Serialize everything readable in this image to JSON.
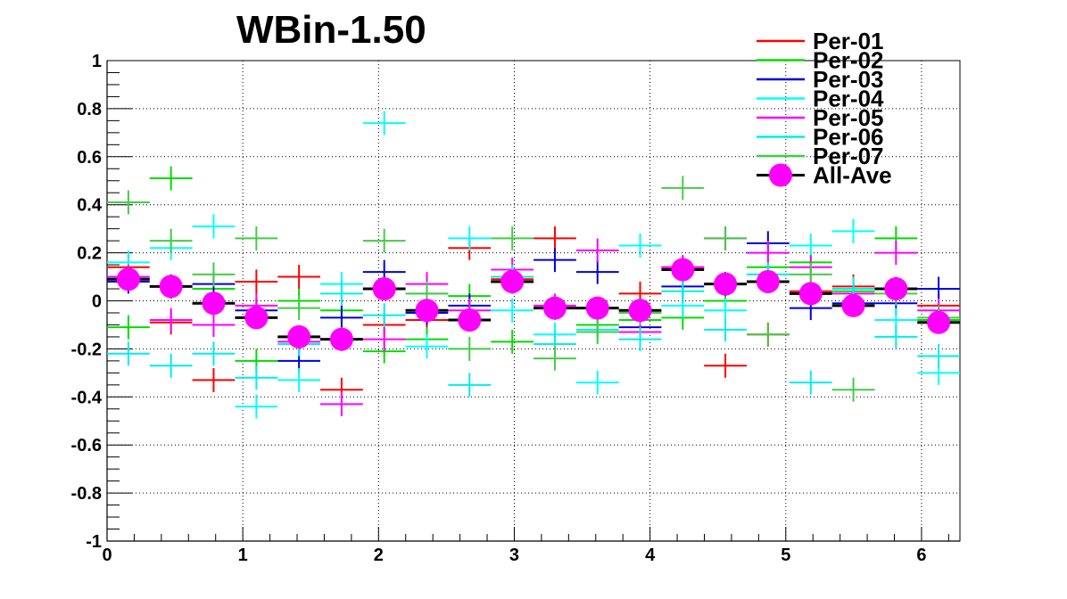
{
  "chart_data": {
    "type": "scatter",
    "title": "WBin-1.50",
    "xlabel": "",
    "ylabel": "",
    "xlim": [
      0,
      6.283
    ],
    "ylim": [
      -1,
      1
    ],
    "grid": true,
    "legend_position": "top-right",
    "x_ticks": [
      0,
      1,
      2,
      3,
      4,
      5,
      6
    ],
    "x_tick_labels": [
      "0",
      "1",
      "2",
      "3",
      "4",
      "5",
      "6"
    ],
    "y_ticks": [
      -1,
      -0.8,
      -0.6,
      -0.4,
      -0.2,
      0,
      0.2,
      0.4,
      0.6,
      0.8,
      1
    ],
    "y_tick_labels": [
      "-1",
      "-0.8",
      "-0.6",
      "-0.4",
      "-0.2",
      "0",
      "0.2",
      "0.4",
      "0.6",
      "0.8",
      "1"
    ],
    "bin_width": 0.314,
    "x": [
      0.157,
      0.471,
      0.785,
      1.1,
      1.414,
      1.728,
      2.042,
      2.356,
      2.67,
      2.985,
      3.299,
      3.613,
      3.927,
      4.241,
      4.555,
      4.869,
      5.184,
      5.498,
      5.812,
      6.126
    ],
    "series": [
      {
        "name": "Per-01",
        "color": "#ff0000",
        "y_err": 0.05,
        "values": [
          0.14,
          -0.09,
          -0.33,
          0.08,
          0.1,
          -0.37,
          -0.1,
          -0.08,
          0.22,
          0.09,
          0.26,
          -0.1,
          0.03,
          0.14,
          -0.27,
          -0.14,
          0.04,
          0.06,
          0.05,
          -0.02
        ]
      },
      {
        "name": "Per-02",
        "color": "#00dd00",
        "y_err": 0.05,
        "values": [
          -0.11,
          0.51,
          0.05,
          -0.25,
          0.0,
          -0.04,
          -0.21,
          -0.16,
          0.02,
          -0.17,
          -0.03,
          -0.1,
          -0.08,
          -0.07,
          0.0,
          0.14,
          0.16,
          0.04,
          0.26,
          -0.08
        ]
      },
      {
        "name": "Per-03",
        "color": "#0000dd",
        "y_err": 0.05,
        "values": [
          0.08,
          0.06,
          0.07,
          -0.04,
          -0.25,
          -0.07,
          0.12,
          -0.05,
          -0.02,
          0.08,
          0.17,
          0.12,
          -0.11,
          0.06,
          0.07,
          0.24,
          -0.03,
          -0.01,
          -0.01,
          0.05
        ]
      },
      {
        "name": "Per-04",
        "color": "#00ffff",
        "y_err": 0.05,
        "values": [
          0.16,
          0.22,
          0.31,
          -0.44,
          -0.33,
          0.07,
          0.74,
          -0.19,
          0.26,
          -0.04,
          -0.14,
          -0.34,
          0.23,
          -0.02,
          -0.04,
          0.11,
          0.23,
          0.29,
          -0.08,
          -0.3
        ]
      },
      {
        "name": "Per-05",
        "color": "#ff00ff",
        "y_err": 0.05,
        "values": [
          0.1,
          -0.08,
          -0.1,
          -0.02,
          -0.17,
          -0.43,
          -0.16,
          0.07,
          -0.04,
          0.13,
          -0.02,
          0.21,
          -0.13,
          0.14,
          0.26,
          0.2,
          0.14,
          0.03,
          0.2,
          -0.04
        ]
      },
      {
        "name": "Per-06",
        "color": "#00eeee",
        "y_err": 0.05,
        "values": [
          -0.22,
          -0.27,
          -0.22,
          -0.32,
          -0.18,
          0.03,
          -0.06,
          0.03,
          -0.35,
          0.1,
          -0.18,
          -0.12,
          -0.16,
          0.04,
          -0.12,
          0.11,
          -0.34,
          0.05,
          -0.15,
          -0.23
        ]
      },
      {
        "name": "Per-07",
        "color": "#44cc44",
        "y_err": 0.05,
        "values": [
          0.41,
          0.25,
          0.11,
          0.26,
          -0.03,
          -0.16,
          0.25,
          0.03,
          -0.2,
          0.26,
          -0.24,
          -0.13,
          -0.05,
          0.47,
          0.26,
          -0.14,
          0.11,
          -0.37,
          0.03,
          -0.07
        ]
      },
      {
        "name": "All-Ave",
        "color": "#ff00ff",
        "bar_color": "#000000",
        "marker": "circle",
        "values": [
          0.09,
          0.06,
          -0.01,
          -0.07,
          -0.15,
          -0.16,
          0.05,
          -0.04,
          -0.08,
          0.08,
          -0.03,
          -0.03,
          -0.04,
          0.13,
          0.07,
          0.08,
          0.03,
          -0.02,
          0.05,
          -0.09
        ]
      }
    ]
  }
}
